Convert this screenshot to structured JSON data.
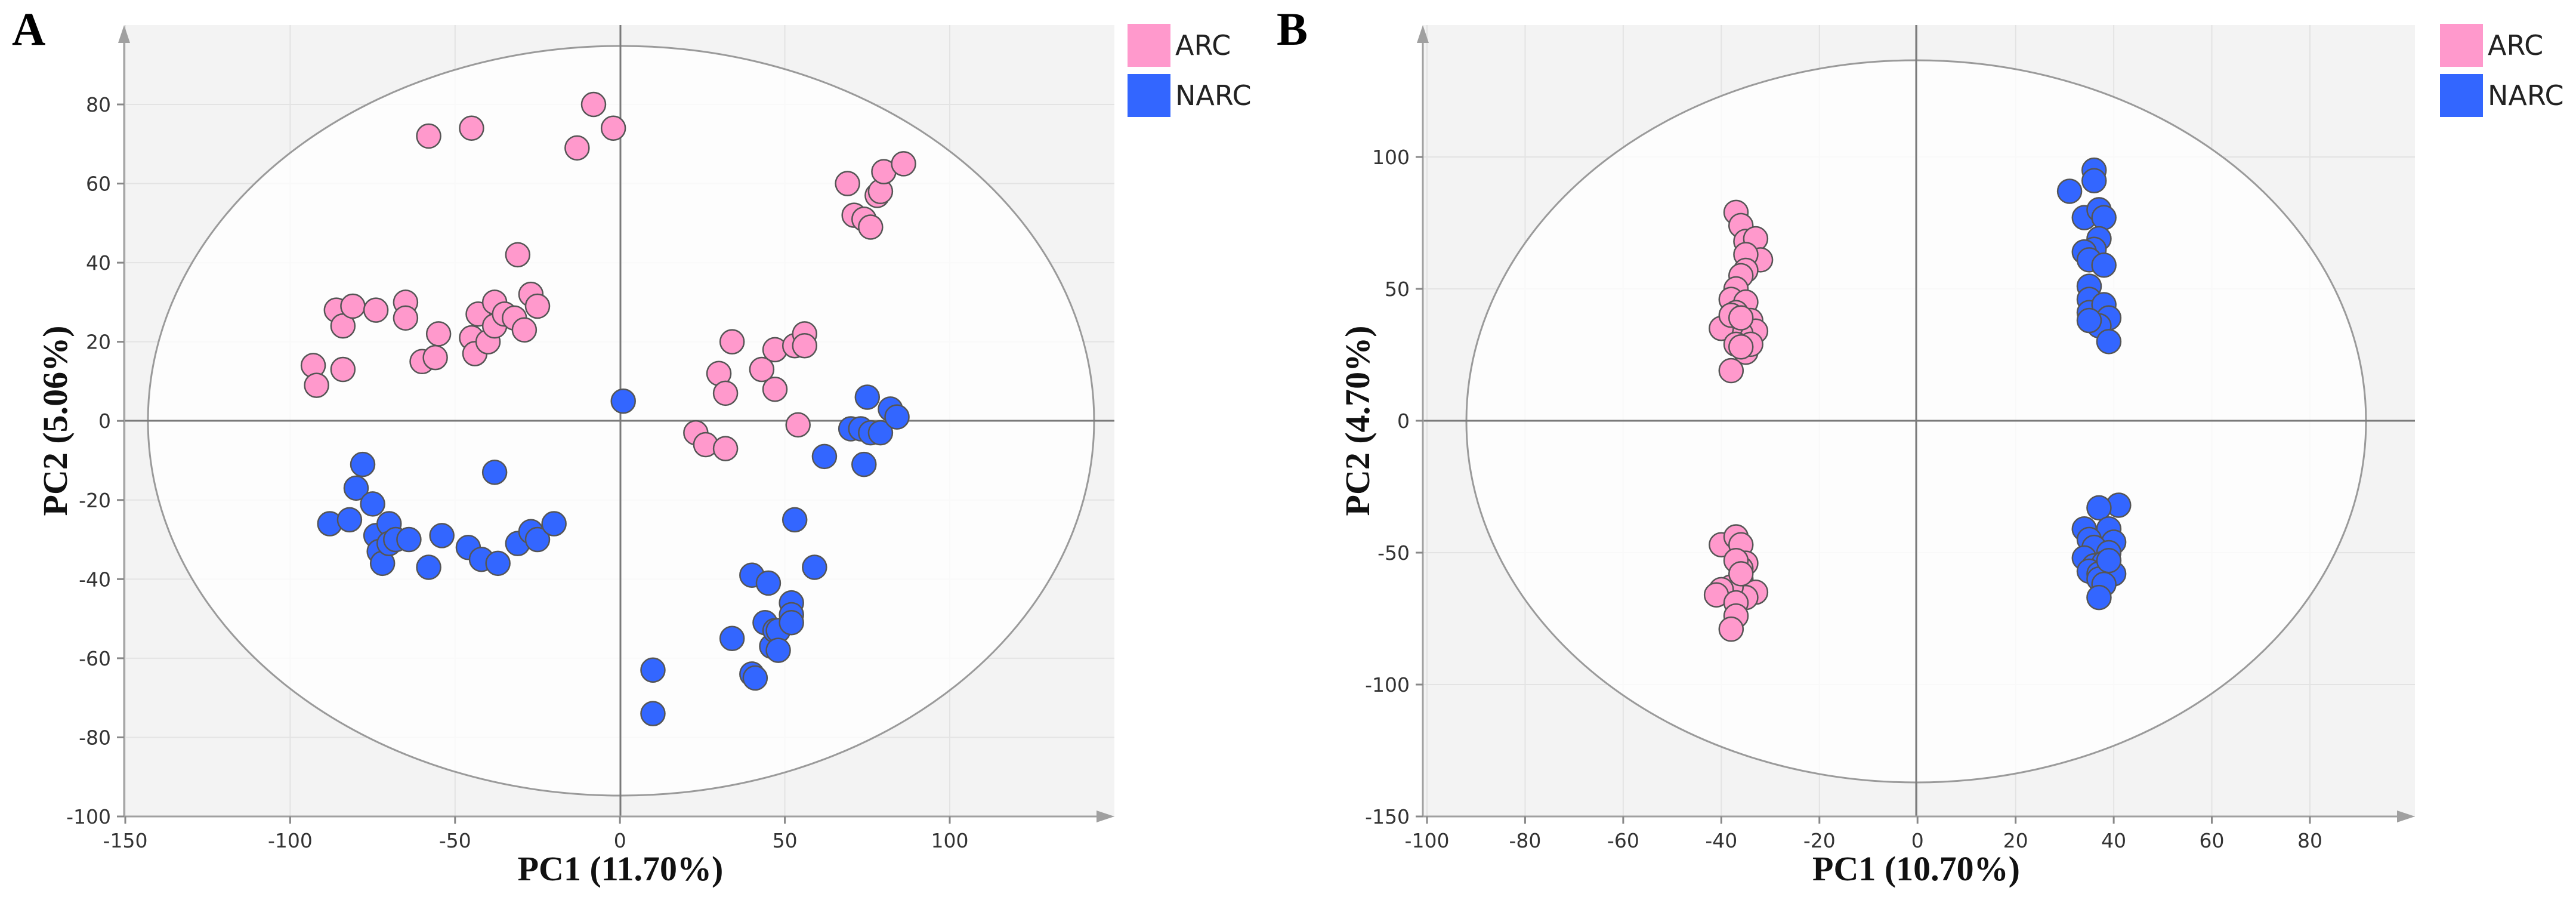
{
  "figure": {
    "legend": [
      {
        "label": "ARC",
        "color": "#FF99CC"
      },
      {
        "label": "NARC",
        "color": "#3366FF"
      }
    ]
  },
  "chart_data": [
    {
      "type": "scatter",
      "panel": "A",
      "xlabel": "PC1 (11.70%)",
      "ylabel": "PC2 (5.06%)",
      "xlim": [
        -150,
        150
      ],
      "ylim": [
        -100,
        98
      ],
      "xticks": [
        -150,
        -100,
        -50,
        0,
        50,
        100
      ],
      "yticks": [
        -100,
        -80,
        -60,
        -40,
        -20,
        0,
        20,
        40,
        60,
        80
      ],
      "grid": true,
      "legend_position": "top-right",
      "ellipse": {
        "rx": 144,
        "ry": 95
      },
      "series": [
        {
          "name": "ARC",
          "color": "#FF99CC",
          "points": [
            [
              -58,
              72
            ],
            [
              -45,
              74
            ],
            [
              -8,
              80
            ],
            [
              -2,
              74
            ],
            [
              -13,
              69
            ],
            [
              -93,
              14
            ],
            [
              -92,
              9
            ],
            [
              -86,
              28
            ],
            [
              -84,
              13
            ],
            [
              -84,
              24
            ],
            [
              -81,
              29
            ],
            [
              -74,
              28
            ],
            [
              -65,
              30
            ],
            [
              -65,
              26
            ],
            [
              -60,
              15
            ],
            [
              -56,
              16
            ],
            [
              -55,
              22
            ],
            [
              -45,
              21
            ],
            [
              -44,
              17
            ],
            [
              -43,
              27
            ],
            [
              -40,
              20
            ],
            [
              -38,
              30
            ],
            [
              -38,
              24
            ],
            [
              -35,
              27
            ],
            [
              -32,
              26
            ],
            [
              -31,
              42
            ],
            [
              -29,
              23
            ],
            [
              -27,
              32
            ],
            [
              -25,
              29
            ],
            [
              69,
              60
            ],
            [
              71,
              52
            ],
            [
              74,
              51
            ],
            [
              76,
              49
            ],
            [
              78,
              57
            ],
            [
              79,
              58
            ],
            [
              80,
              63
            ],
            [
              86,
              65
            ],
            [
              23,
              -3
            ],
            [
              26,
              -6
            ],
            [
              30,
              12
            ],
            [
              32,
              -7
            ],
            [
              32,
              7
            ],
            [
              34,
              20
            ],
            [
              43,
              13
            ],
            [
              47,
              18
            ],
            [
              47,
              8
            ],
            [
              53,
              19
            ],
            [
              54,
              -1
            ],
            [
              56,
              22
            ],
            [
              56,
              19
            ]
          ]
        },
        {
          "name": "NARC",
          "color": "#3366FF",
          "points": [
            [
              -88,
              -26
            ],
            [
              -82,
              -25
            ],
            [
              -80,
              -17
            ],
            [
              -78,
              -11
            ],
            [
              -75,
              -21
            ],
            [
              -74,
              -29
            ],
            [
              -73,
              -33
            ],
            [
              -72,
              -36
            ],
            [
              -70,
              -26
            ],
            [
              -70,
              -31
            ],
            [
              -68,
              -30
            ],
            [
              -64,
              -30
            ],
            [
              -58,
              -37
            ],
            [
              -54,
              -29
            ],
            [
              -46,
              -32
            ],
            [
              -42,
              -35
            ],
            [
              -38,
              -13
            ],
            [
              -37,
              -36
            ],
            [
              -31,
              -31
            ],
            [
              -27,
              -28
            ],
            [
              -25,
              -30
            ],
            [
              -20,
              -26
            ],
            [
              1,
              5
            ],
            [
              10,
              -63
            ],
            [
              10,
              -74
            ],
            [
              34,
              -55
            ],
            [
              40,
              -39
            ],
            [
              40,
              -64
            ],
            [
              41,
              -65
            ],
            [
              44,
              -51
            ],
            [
              45,
              -41
            ],
            [
              46,
              -57
            ],
            [
              47,
              -53
            ],
            [
              48,
              -53
            ],
            [
              48,
              -58
            ],
            [
              52,
              -46
            ],
            [
              52,
              -49
            ],
            [
              52,
              -51
            ],
            [
              53,
              -25
            ],
            [
              59,
              -37
            ],
            [
              62,
              -9
            ],
            [
              70,
              -2
            ],
            [
              73,
              -2
            ],
            [
              74,
              -11
            ],
            [
              75,
              6
            ],
            [
              76,
              -3
            ],
            [
              79,
              -3
            ],
            [
              82,
              3
            ],
            [
              84,
              1
            ]
          ]
        }
      ]
    },
    {
      "type": "scatter",
      "panel": "B",
      "xlabel": "PC1 (10.70%)",
      "ylabel": "PC2 (4.70%)",
      "xlim": [
        -100,
        100
      ],
      "ylim": [
        -150,
        140
      ],
      "xticks": [
        -100,
        -80,
        -60,
        -40,
        -20,
        0,
        20,
        40,
        60,
        80
      ],
      "yticks": [
        -150,
        -100,
        -50,
        0,
        50,
        100
      ],
      "grid": true,
      "legend_position": "top-right",
      "ellipse": {
        "rx": 93,
        "ry": 138
      },
      "series": [
        {
          "name": "ARC",
          "color": "#FF99CC",
          "points": [
            [
              -37,
              79
            ],
            [
              -36,
              74
            ],
            [
              -35,
              68
            ],
            [
              -33,
              69
            ],
            [
              -32,
              61
            ],
            [
              -35,
              63
            ],
            [
              -35,
              57
            ],
            [
              -36,
              55
            ],
            [
              -37,
              50
            ],
            [
              -38,
              46
            ],
            [
              -35,
              45
            ],
            [
              -37,
              41
            ],
            [
              -34,
              38
            ],
            [
              -33,
              34
            ],
            [
              -36,
              33
            ],
            [
              -38,
              36
            ],
            [
              -40,
              35
            ],
            [
              -37,
              29
            ],
            [
              -35,
              26
            ],
            [
              -34,
              29
            ],
            [
              -36,
              28
            ],
            [
              -38,
              19
            ],
            [
              -38,
              40
            ],
            [
              -36,
              39
            ],
            [
              -40,
              -47
            ],
            [
              -37,
              -44
            ],
            [
              -36,
              -47
            ],
            [
              -35,
              -54
            ],
            [
              -36,
              -56
            ],
            [
              -37,
              -53
            ],
            [
              -36,
              -60
            ],
            [
              -33,
              -65
            ],
            [
              -35,
              -67
            ],
            [
              -38,
              -63
            ],
            [
              -40,
              -64
            ],
            [
              -41,
              -66
            ],
            [
              -37,
              -69
            ],
            [
              -37,
              -74
            ],
            [
              -38,
              -79
            ],
            [
              -36,
              -58
            ]
          ]
        },
        {
          "name": "NARC",
          "color": "#3366FF",
          "points": [
            [
              31,
              87
            ],
            [
              36,
              95
            ],
            [
              36,
              91
            ],
            [
              34,
              77
            ],
            [
              37,
              80
            ],
            [
              38,
              77
            ],
            [
              37,
              69
            ],
            [
              36,
              65
            ],
            [
              34,
              64
            ],
            [
              35,
              61
            ],
            [
              38,
              59
            ],
            [
              35,
              51
            ],
            [
              35,
              46
            ],
            [
              35,
              41
            ],
            [
              38,
              44
            ],
            [
              39,
              39
            ],
            [
              37,
              36
            ],
            [
              35,
              38
            ],
            [
              39,
              30
            ],
            [
              41,
              -32
            ],
            [
              37,
              -33
            ],
            [
              34,
              -41
            ],
            [
              39,
              -41
            ],
            [
              40,
              -46
            ],
            [
              35,
              -45
            ],
            [
              36,
              -48
            ],
            [
              39,
              -50
            ],
            [
              34,
              -52
            ],
            [
              36,
              -55
            ],
            [
              38,
              -54
            ],
            [
              35,
              -57
            ],
            [
              37,
              -58
            ],
            [
              40,
              -58
            ],
            [
              37,
              -60
            ],
            [
              38,
              -62
            ],
            [
              37,
              -67
            ],
            [
              39,
              -53
            ]
          ]
        }
      ]
    }
  ]
}
